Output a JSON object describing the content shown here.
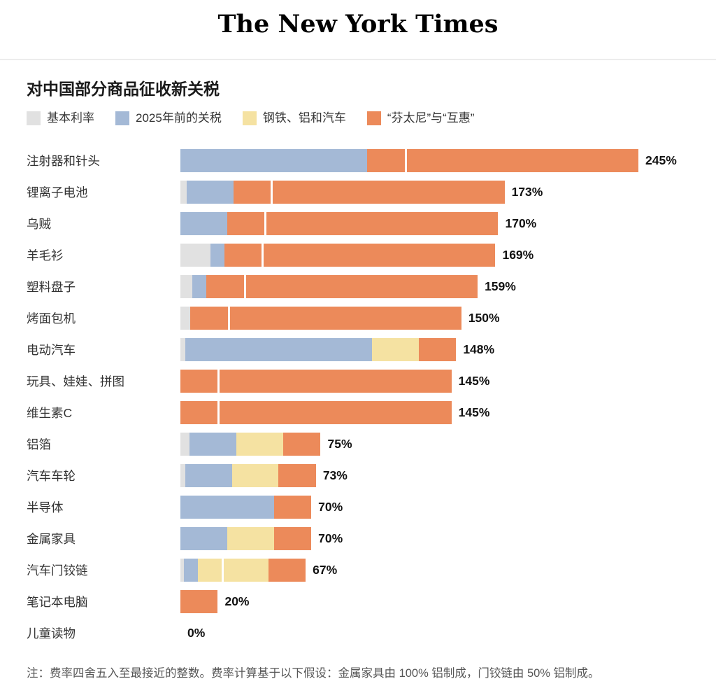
{
  "masthead": {
    "logo_text": "The New York Times"
  },
  "chart_data": {
    "type": "bar",
    "orientation": "horizontal",
    "stacked": true,
    "title": "对中国部分商品征收新关税",
    "xmax": 245,
    "unit": "%",
    "grid": false,
    "legend_position": "top",
    "legend": [
      {
        "key": "base",
        "label": "基本利率",
        "color": "#e1e1e1"
      },
      {
        "key": "pre2025",
        "label": "2025年前的关税",
        "color": "#a4b9d6"
      },
      {
        "key": "metals",
        "label": "钢铁、铝和汽车",
        "color": "#f5e2a2"
      },
      {
        "key": "fentanyl",
        "label": "“芬太尼”与“互惠”",
        "color": "#ec8a5a"
      }
    ],
    "rows": [
      {
        "label": "注射器和针头",
        "total_label": "245%",
        "total": 245,
        "segments": [
          {
            "k": "pre2025",
            "v": 100
          },
          {
            "k": "fentanyl",
            "v": 20
          },
          {
            "k": "fentanyl",
            "v": 125,
            "d": true
          }
        ]
      },
      {
        "label": "锂离子电池",
        "total_label": "173%",
        "total": 173,
        "segments": [
          {
            "k": "base",
            "v": 3.4
          },
          {
            "k": "pre2025",
            "v": 25
          },
          {
            "k": "fentanyl",
            "v": 20
          },
          {
            "k": "fentanyl",
            "v": 125,
            "d": true
          }
        ]
      },
      {
        "label": "乌贼",
        "total_label": "170%",
        "total": 170,
        "segments": [
          {
            "k": "pre2025",
            "v": 25
          },
          {
            "k": "fentanyl",
            "v": 20
          },
          {
            "k": "fentanyl",
            "v": 125,
            "d": true
          }
        ]
      },
      {
        "label": "羊毛衫",
        "total_label": "169%",
        "total": 169,
        "segments": [
          {
            "k": "base",
            "v": 16
          },
          {
            "k": "pre2025",
            "v": 7.5
          },
          {
            "k": "fentanyl",
            "v": 20
          },
          {
            "k": "fentanyl",
            "v": 125,
            "d": true
          }
        ]
      },
      {
        "label": "塑料盘子",
        "total_label": "159%",
        "total": 159,
        "segments": [
          {
            "k": "base",
            "v": 6.5
          },
          {
            "k": "pre2025",
            "v": 7.5
          },
          {
            "k": "fentanyl",
            "v": 20
          },
          {
            "k": "fentanyl",
            "v": 125,
            "d": true
          }
        ]
      },
      {
        "label": "烤面包机",
        "total_label": "150%",
        "total": 150,
        "segments": [
          {
            "k": "base",
            "v": 5.3
          },
          {
            "k": "fentanyl",
            "v": 20
          },
          {
            "k": "fentanyl",
            "v": 125,
            "d": true
          }
        ]
      },
      {
        "label": "电动汽车",
        "total_label": "148%",
        "total": 148,
        "segments": [
          {
            "k": "base",
            "v": 2.5
          },
          {
            "k": "pre2025",
            "v": 100
          },
          {
            "k": "metals",
            "v": 25
          },
          {
            "k": "fentanyl",
            "v": 20
          }
        ]
      },
      {
        "label": "玩具、娃娃、拼图",
        "total_label": "145%",
        "total": 145,
        "segments": [
          {
            "k": "fentanyl",
            "v": 20
          },
          {
            "k": "fentanyl",
            "v": 125,
            "d": true
          }
        ]
      },
      {
        "label": "维生素C",
        "total_label": "145%",
        "total": 145,
        "segments": [
          {
            "k": "fentanyl",
            "v": 20
          },
          {
            "k": "fentanyl",
            "v": 125,
            "d": true
          }
        ]
      },
      {
        "label": "铝箔",
        "total_label": "75%",
        "total": 75,
        "segments": [
          {
            "k": "base",
            "v": 5
          },
          {
            "k": "pre2025",
            "v": 25
          },
          {
            "k": "metals",
            "v": 25
          },
          {
            "k": "fentanyl",
            "v": 20
          }
        ]
      },
      {
        "label": "汽车车轮",
        "total_label": "73%",
        "total": 73,
        "segments": [
          {
            "k": "base",
            "v": 2.5
          },
          {
            "k": "pre2025",
            "v": 25
          },
          {
            "k": "metals",
            "v": 25
          },
          {
            "k": "fentanyl",
            "v": 20
          }
        ]
      },
      {
        "label": "半导体",
        "total_label": "70%",
        "total": 70,
        "segments": [
          {
            "k": "pre2025",
            "v": 50
          },
          {
            "k": "fentanyl",
            "v": 20
          }
        ]
      },
      {
        "label": "金属家具",
        "total_label": "70%",
        "total": 70,
        "segments": [
          {
            "k": "pre2025",
            "v": 25
          },
          {
            "k": "metals",
            "v": 25
          },
          {
            "k": "fentanyl",
            "v": 20
          }
        ]
      },
      {
        "label": "汽车门铰链",
        "total_label": "67%",
        "total": 67,
        "segments": [
          {
            "k": "base",
            "v": 2
          },
          {
            "k": "pre2025",
            "v": 7.5
          },
          {
            "k": "metals",
            "v": 12.5
          },
          {
            "k": "metals",
            "v": 25,
            "d": true
          },
          {
            "k": "fentanyl",
            "v": 20
          }
        ]
      },
      {
        "label": "笔记本电脑",
        "total_label": "20%",
        "total": 20,
        "segments": [
          {
            "k": "fentanyl",
            "v": 20
          }
        ]
      },
      {
        "label": "儿童读物",
        "total_label": "0%",
        "total": 0,
        "segments": []
      }
    ],
    "note": "注：费率四舍五入至最接近的整数。费率计算基于以下假设：金属家具由 100% 铝制成，门铰链由 50% 铝制成。"
  }
}
